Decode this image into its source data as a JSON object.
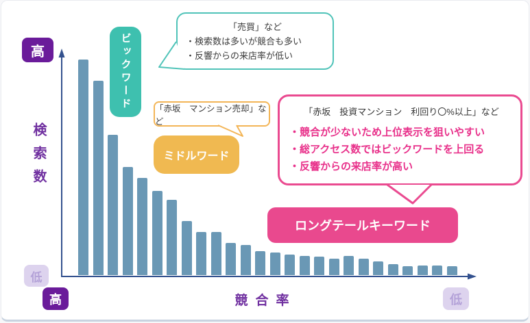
{
  "y_axis": {
    "label": "検索数",
    "high": "高",
    "low": "低"
  },
  "x_axis": {
    "label": "競合率",
    "high": "高",
    "low": "低"
  },
  "big_word": {
    "button_label": "ビックワード",
    "bubble_title": "「売買」など",
    "bubble_bullets": [
      "・検索数は多いが競合も多い",
      "・反響からの来店率が低い"
    ]
  },
  "middle_word": {
    "button_label": "ミドルワード",
    "bubble_title": "「赤坂　マンション売却」など"
  },
  "longtail": {
    "button_label": "ロングテールキーワード",
    "bubble_title": "「赤坂　投資マンション　利回り〇%以上」など",
    "bubble_bullets": [
      "・競合が少ないため上位表示を狙いやすい",
      "・総アクセス数ではビックワードを上回る",
      "・反響からの来店率が高い"
    ]
  },
  "colors": {
    "bar": "#6a98b5",
    "axis": "#33518e",
    "axis_label_text": "#7030a0",
    "badge_high_bg": "#6a1b9a",
    "badge_high_text": "#ffffff",
    "badge_low_bg": "#ddd3ee",
    "badge_low_text": "#b4a2d8",
    "big_word": "#3ec0af",
    "middle_word": "#f0b951",
    "longtail": "#e9498e",
    "longtail_bullet_text": "#e8308a",
    "bubble_text": "#3a3a3a"
  },
  "chart_data": {
    "type": "bar",
    "title": "",
    "xlabel": "競合率",
    "ylabel": "検索数",
    "x_axis_scale": "高 → 低 (qualitative, no numeric ticks)",
    "y_axis_scale": "高 → 低 (qualitative, no numeric ticks)",
    "grid": false,
    "legend": false,
    "bar_count": 26,
    "values_relative_pct": [
      100,
      90,
      65,
      50,
      45,
      39,
      35,
      25,
      20,
      20,
      15,
      14,
      11,
      10.5,
      9.5,
      9,
      8.5,
      7.5,
      9,
      7.5,
      6.5,
      5,
      4,
      4.5,
      4.5,
      4
    ],
    "annotations": [
      {
        "zone": "head",
        "label": "ビックワード",
        "example": "「売買」など"
      },
      {
        "zone": "middle",
        "label": "ミドルワード",
        "example": "「赤坂　マンション売却」など"
      },
      {
        "zone": "tail",
        "label": "ロングテールキーワード",
        "example": "「赤坂　投資マンション　利回り〇%以上」など"
      }
    ]
  }
}
